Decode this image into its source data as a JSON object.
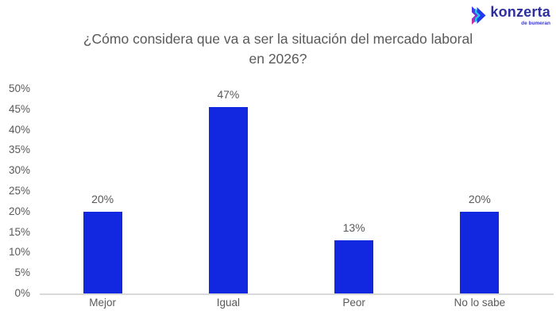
{
  "logo": {
    "brand": "konzerta",
    "subtext": "de bumeran",
    "icon": "konzerta-chevron-icon"
  },
  "chart_data": {
    "type": "bar",
    "title": "¿Cómo considera que va a ser la situación del mercado laboral en 2026?",
    "categories": [
      "Mejor",
      "Igual",
      "Peor",
      "No lo sabe"
    ],
    "values": [
      20,
      47,
      13,
      20
    ],
    "value_labels": [
      "20%",
      "47%",
      "13%",
      "20%"
    ],
    "xlabel": "",
    "ylabel": "",
    "ylim": [
      0,
      50
    ],
    "ytick_step": 5,
    "ytick_suffix": "%",
    "grid": false,
    "legend": false,
    "bar_color": "#1128e0",
    "text_color": "#595959",
    "axis_line_color": "#d9d9d9"
  },
  "colors": {
    "background": "#ffffff",
    "logo_text": "#2e2f9f",
    "logo_subtext": "#3a39cf",
    "logo_gradient_top": "#2b3bee",
    "logo_gradient_bottom": "#e8308f",
    "logo_cyan": "#1cc8ea"
  }
}
